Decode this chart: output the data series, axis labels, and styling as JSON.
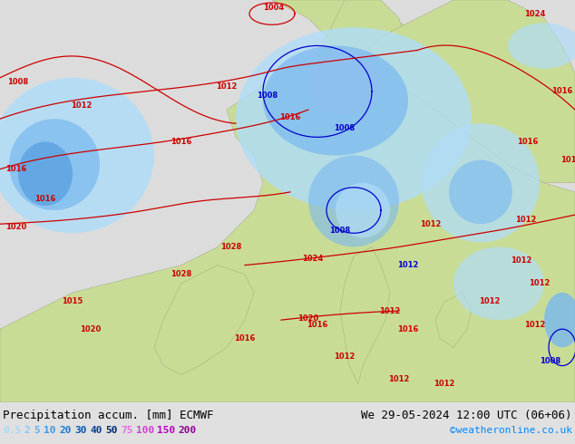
{
  "bg_color": "#e0e0e0",
  "ocean_color": "#c8c8c8",
  "land_green_light": "#c8dc96",
  "land_green_dark": "#a0c070",
  "sea_color": "#dcdcdc",
  "precip_light": "#b0dcf8",
  "precip_mid": "#78b8f0",
  "precip_dark": "#4090d8",
  "title_left": "Precipitation accum. [mm] ECMWF",
  "title_right": "We 29-05-2024 12:00 UTC (06+06)",
  "copyright": "©weatheronline.co.uk",
  "legend_items": [
    {
      "val": "0.5",
      "color": "#a8d8f8"
    },
    {
      "val": "2",
      "color": "#88c8f8"
    },
    {
      "val": "5",
      "color": "#60b0f0"
    },
    {
      "val": "10",
      "color": "#3898e8"
    },
    {
      "val": "20",
      "color": "#1878d0"
    },
    {
      "val": "30",
      "color": "#0858b0"
    },
    {
      "val": "40",
      "color": "#044090"
    },
    {
      "val": "50",
      "color": "#022870"
    },
    {
      "val": "75",
      "color": "#e070e0"
    },
    {
      "val": "100",
      "color": "#d040d0"
    },
    {
      "val": "150",
      "color": "#b800b8"
    },
    {
      "val": "200",
      "color": "#900090"
    }
  ],
  "title_fontsize": 9,
  "legend_fontsize": 8,
  "copyright_color": "#0088ff",
  "title_color": "#000000",
  "isobar_red": "#cc0000",
  "isobar_blue": "#0000cc",
  "isobar_fontsize": 6
}
